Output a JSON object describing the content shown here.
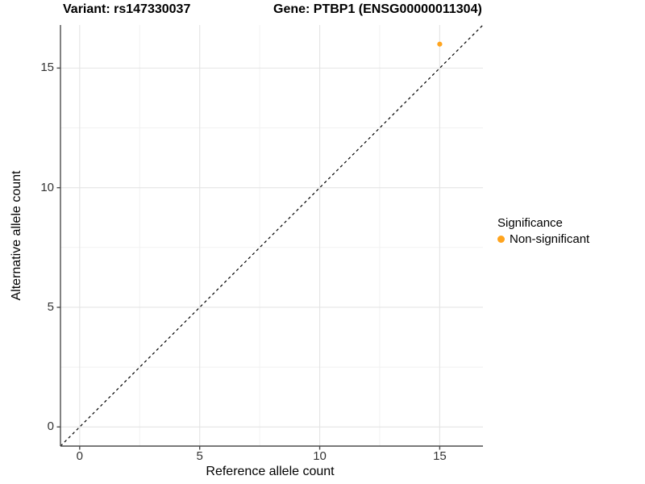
{
  "titles": {
    "variant": "Variant: rs147330037",
    "gene": "Gene: PTBP1 (ENSG00000011304)"
  },
  "chart_data": {
    "type": "scatter",
    "title": "Variant: rs147330037   Gene: PTBP1 (ENSG00000011304)",
    "xlabel": "Reference allele count",
    "ylabel": "Alternative allele count",
    "xlim": [
      -0.8,
      16.8
    ],
    "ylim": [
      -0.8,
      16.8
    ],
    "x_ticks": [
      0,
      5,
      10,
      15
    ],
    "y_ticks": [
      0,
      5,
      10,
      15
    ],
    "x_minor_ticks": [
      2.5,
      7.5,
      12.5
    ],
    "y_minor_ticks": [
      2.5,
      7.5,
      12.5
    ],
    "grid": "major+minor",
    "reference_line": {
      "type": "identity",
      "equation": "y = x",
      "style": "dashed",
      "color": "#000000"
    },
    "series": [
      {
        "name": "Non-significant",
        "color": "#FFA41E",
        "points": [
          {
            "x": 15,
            "y": 16
          }
        ]
      }
    ],
    "legend": {
      "title": "Significance",
      "position": "right",
      "items": [
        {
          "label": "Non-significant",
          "color": "#FFA41E"
        }
      ]
    }
  },
  "colors": {
    "background": "#FFFFFF",
    "grid_major": "#E4E4E4",
    "grid_minor": "#F1F1F1",
    "axis_line": "#4D4D4D",
    "tick_text": "#333333",
    "point": "#FFA41E"
  }
}
